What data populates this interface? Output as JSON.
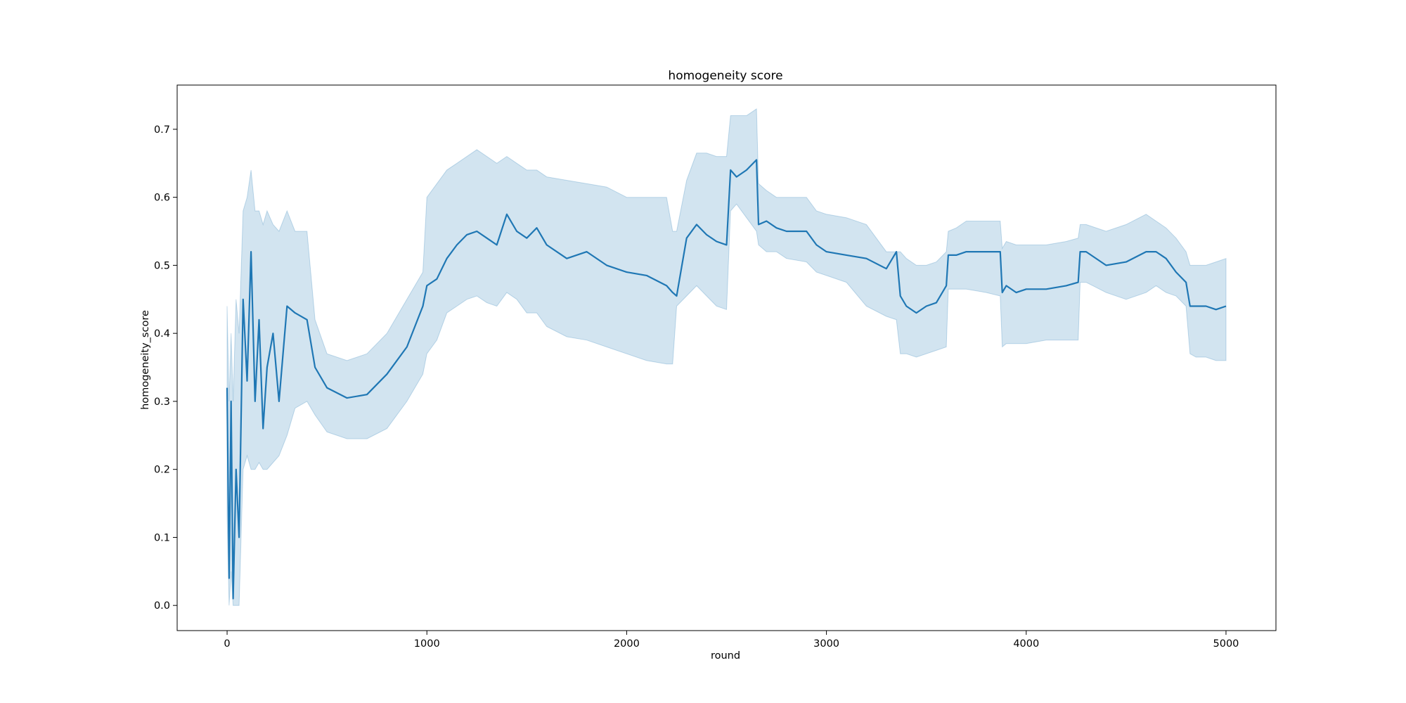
{
  "chart_data": {
    "type": "line",
    "title": "homogeneity score",
    "xlabel": "round",
    "ylabel": "homogeneity_score",
    "xlim": [
      -250,
      5250
    ],
    "ylim": [
      -0.037,
      0.765
    ],
    "x_ticks": [
      0,
      1000,
      2000,
      3000,
      4000,
      5000
    ],
    "x_tick_labels": [
      "0",
      "1000",
      "2000",
      "3000",
      "4000",
      "5000"
    ],
    "y_ticks": [
      0.0,
      0.1,
      0.2,
      0.3,
      0.4,
      0.5,
      0.6,
      0.7
    ],
    "y_tick_labels": [
      "0.0",
      "0.1",
      "0.2",
      "0.3",
      "0.4",
      "0.5",
      "0.6",
      "0.7"
    ],
    "grid": false,
    "legend": "none",
    "colors": {
      "line": "#1f77b4",
      "band": "#1f77b4",
      "band_opacity": 0.2
    },
    "series": [
      {
        "x": [
          0,
          10,
          20,
          30,
          45,
          60,
          80,
          100,
          120,
          140,
          160,
          180,
          200,
          230,
          260,
          300,
          340,
          400,
          440,
          500,
          600,
          700,
          800,
          900,
          980,
          1000,
          1050,
          1100,
          1150,
          1200,
          1250,
          1300,
          1350,
          1400,
          1450,
          1500,
          1550,
          1600,
          1700,
          1800,
          1900,
          2000,
          2100,
          2200,
          2230,
          2250,
          2300,
          2350,
          2400,
          2450,
          2500,
          2520,
          2550,
          2600,
          2650,
          2660,
          2700,
          2750,
          2800,
          2900,
          2950,
          3000,
          3100,
          3200,
          3300,
          3350,
          3370,
          3400,
          3450,
          3500,
          3550,
          3600,
          3610,
          3650,
          3700,
          3800,
          3870,
          3880,
          3900,
          3950,
          4000,
          4100,
          4200,
          4260,
          4270,
          4300,
          4400,
          4500,
          4600,
          4650,
          4700,
          4750,
          4800,
          4820,
          4850,
          4900,
          4950,
          5000
        ],
        "y": [
          0.32,
          0.04,
          0.3,
          0.01,
          0.2,
          0.1,
          0.45,
          0.33,
          0.52,
          0.3,
          0.42,
          0.26,
          0.35,
          0.4,
          0.3,
          0.44,
          0.43,
          0.42,
          0.35,
          0.32,
          0.305,
          0.31,
          0.34,
          0.38,
          0.44,
          0.47,
          0.48,
          0.51,
          0.53,
          0.545,
          0.55,
          0.54,
          0.53,
          0.575,
          0.55,
          0.54,
          0.555,
          0.53,
          0.51,
          0.52,
          0.5,
          0.49,
          0.485,
          0.47,
          0.46,
          0.455,
          0.54,
          0.56,
          0.545,
          0.535,
          0.53,
          0.64,
          0.63,
          0.64,
          0.655,
          0.56,
          0.565,
          0.555,
          0.55,
          0.55,
          0.53,
          0.52,
          0.515,
          0.51,
          0.495,
          0.52,
          0.455,
          0.44,
          0.43,
          0.44,
          0.445,
          0.47,
          0.515,
          0.515,
          0.52,
          0.52,
          0.52,
          0.46,
          0.47,
          0.46,
          0.465,
          0.465,
          0.47,
          0.475,
          0.52,
          0.52,
          0.5,
          0.505,
          0.52,
          0.52,
          0.51,
          0.49,
          0.475,
          0.44,
          0.44,
          0.44,
          0.435,
          0.44
        ],
        "lower": [
          0.13,
          0.0,
          0.05,
          0.0,
          0.0,
          0.0,
          0.2,
          0.22,
          0.2,
          0.2,
          0.21,
          0.2,
          0.2,
          0.21,
          0.22,
          0.25,
          0.29,
          0.3,
          0.28,
          0.255,
          0.245,
          0.245,
          0.26,
          0.3,
          0.34,
          0.37,
          0.39,
          0.43,
          0.44,
          0.45,
          0.455,
          0.445,
          0.44,
          0.46,
          0.45,
          0.43,
          0.43,
          0.41,
          0.395,
          0.39,
          0.38,
          0.37,
          0.36,
          0.355,
          0.355,
          0.44,
          0.455,
          0.47,
          0.455,
          0.44,
          0.435,
          0.58,
          0.59,
          0.57,
          0.55,
          0.53,
          0.52,
          0.52,
          0.51,
          0.505,
          0.49,
          0.485,
          0.475,
          0.44,
          0.425,
          0.42,
          0.37,
          0.37,
          0.365,
          0.37,
          0.375,
          0.38,
          0.465,
          0.465,
          0.465,
          0.46,
          0.455,
          0.38,
          0.385,
          0.385,
          0.385,
          0.39,
          0.39,
          0.39,
          0.475,
          0.475,
          0.46,
          0.45,
          0.46,
          0.47,
          0.46,
          0.455,
          0.44,
          0.37,
          0.365,
          0.365,
          0.36,
          0.36
        ],
        "upper": [
          0.44,
          0.3,
          0.4,
          0.3,
          0.45,
          0.4,
          0.58,
          0.6,
          0.64,
          0.58,
          0.58,
          0.56,
          0.58,
          0.56,
          0.55,
          0.58,
          0.55,
          0.55,
          0.42,
          0.37,
          0.36,
          0.37,
          0.4,
          0.45,
          0.49,
          0.6,
          0.62,
          0.64,
          0.65,
          0.66,
          0.67,
          0.66,
          0.65,
          0.66,
          0.65,
          0.64,
          0.64,
          0.63,
          0.625,
          0.62,
          0.615,
          0.6,
          0.6,
          0.6,
          0.55,
          0.55,
          0.625,
          0.665,
          0.665,
          0.66,
          0.66,
          0.72,
          0.72,
          0.72,
          0.73,
          0.62,
          0.61,
          0.6,
          0.6,
          0.6,
          0.58,
          0.575,
          0.57,
          0.56,
          0.52,
          0.52,
          0.52,
          0.51,
          0.5,
          0.5,
          0.505,
          0.52,
          0.55,
          0.555,
          0.565,
          0.565,
          0.565,
          0.525,
          0.535,
          0.53,
          0.53,
          0.53,
          0.535,
          0.54,
          0.56,
          0.56,
          0.55,
          0.56,
          0.575,
          0.565,
          0.555,
          0.54,
          0.52,
          0.5,
          0.5,
          0.5,
          0.505,
          0.51
        ]
      }
    ]
  }
}
